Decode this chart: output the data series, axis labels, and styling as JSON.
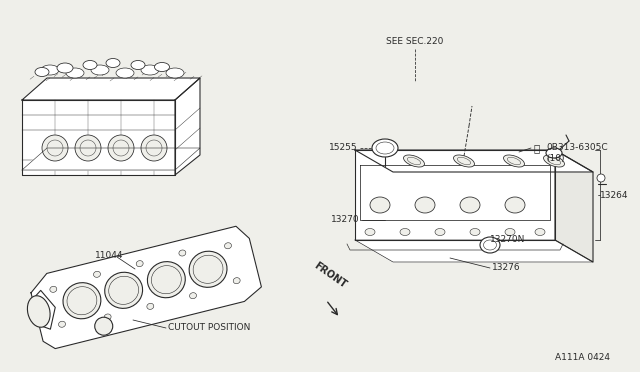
{
  "bg_color": "#efefea",
  "line_color": "#2a2a2a",
  "title_code": "A111A 0424",
  "labels": {
    "see_sec": "SEE SEC.220",
    "part1": "15255",
    "part2": "0B313-6305C",
    "part2b": "(10)",
    "part3": "13270",
    "part4": "13270N",
    "part5": "13264",
    "part6": "13276",
    "part7": "11044",
    "cutout": "CUTOUT POSITION",
    "front": "FRONT"
  },
  "font_size": 6.5,
  "small_font": 5.5
}
